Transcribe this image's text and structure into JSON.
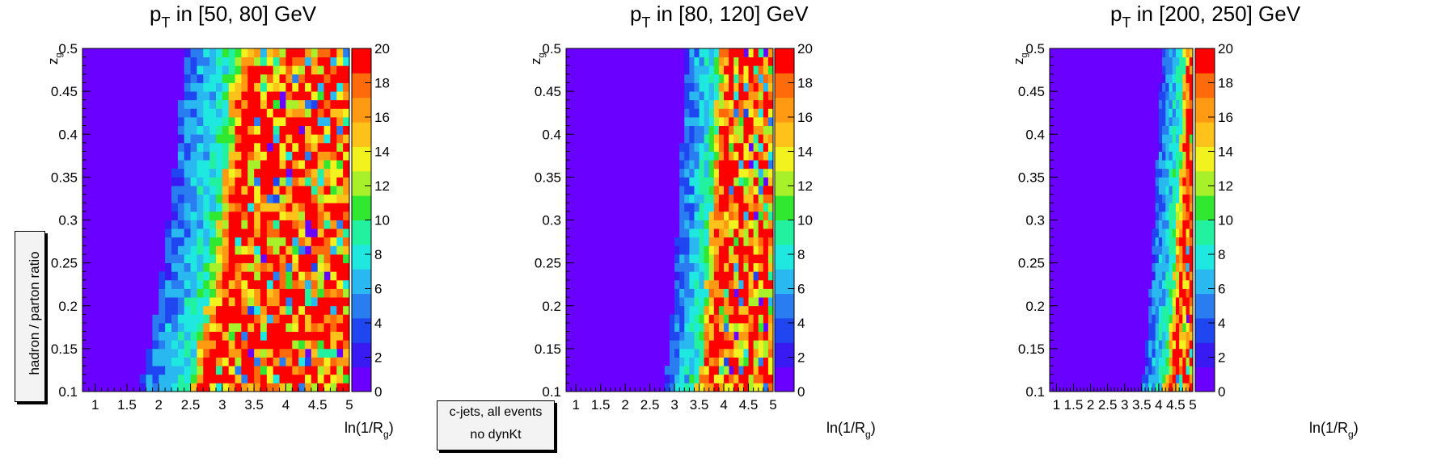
{
  "side_label": "hadron / parton ratio",
  "note": {
    "line1": "c-jets, all events",
    "line2": "no dynKt"
  },
  "colors": {
    "scale": [
      "#6A00FF",
      "#3A1AF2",
      "#1F46F0",
      "#2A7DF0",
      "#29B8F0",
      "#1EE8E0",
      "#22F2A0",
      "#2FE82F",
      "#A8F02A",
      "#F2F21E",
      "#FFC21A",
      "#FF9A12",
      "#FF6A0A",
      "#FF0000"
    ]
  },
  "chart_data": [
    {
      "type": "heatmap",
      "title": {
        "main": "p",
        "sub": "T",
        "rest": " in [50, 80] GeV"
      },
      "xlabel": {
        "main": "ln(1/R",
        "sub": "g",
        "end": ")"
      },
      "ylabel": {
        "main": "z",
        "sub": "g"
      },
      "xlim": [
        0.8,
        5.0
      ],
      "ylim": [
        0.1,
        0.5
      ],
      "x_ticks": [
        "1",
        "1.5",
        "2",
        "2.5",
        "3",
        "3.5",
        "4",
        "4.5",
        "5"
      ],
      "y_ticks": [
        "0.1",
        "0.15",
        "0.2",
        "0.25",
        "0.3",
        "0.35",
        "0.4",
        "0.45",
        "0.5"
      ],
      "zlim": [
        0,
        20
      ],
      "z_ticks": [
        "0",
        "2",
        "4",
        "6",
        "8",
        "10",
        "12",
        "14",
        "16",
        "18",
        "20"
      ],
      "nx": 42,
      "ny": 40,
      "front_x": [
        2.4,
        3.2
      ],
      "front_width": 0.35,
      "noise_seed": 11
    },
    {
      "type": "heatmap",
      "title": {
        "main": "p",
        "sub": "T",
        "rest": " in [80, 120] GeV"
      },
      "xlabel": {
        "main": "ln(1/R",
        "sub": "g",
        "end": ")"
      },
      "ylabel": {
        "main": "z",
        "sub": "g"
      },
      "xlim": [
        0.8,
        5.0
      ],
      "ylim": [
        0.1,
        0.5
      ],
      "x_ticks": [
        "1",
        "1.5",
        "2",
        "2.5",
        "3",
        "3.5",
        "4",
        "4.5",
        "5"
      ],
      "y_ticks": [
        "0.1",
        "0.15",
        "0.2",
        "0.25",
        "0.3",
        "0.35",
        "0.4",
        "0.45",
        "0.5"
      ],
      "zlim": [
        0,
        20
      ],
      "z_ticks": [
        "0",
        "2",
        "4",
        "6",
        "8",
        "10",
        "12",
        "14",
        "16",
        "18",
        "20"
      ],
      "nx": 42,
      "ny": 40,
      "front_x": [
        3.4,
        3.9
      ],
      "front_width": 0.3,
      "noise_seed": 23
    },
    {
      "type": "heatmap",
      "title": {
        "main": "p",
        "sub": "T",
        "rest": " in [200, 250] GeV"
      },
      "xlabel": {
        "main": "ln(1/R",
        "sub": "g",
        "end": ")"
      },
      "ylabel": {
        "main": "z",
        "sub": "g"
      },
      "xlim": [
        0.8,
        5.0
      ],
      "ylim": [
        0.1,
        0.5
      ],
      "x_ticks": [
        "1",
        "1.5",
        "2",
        "2.5",
        "3",
        "3.5",
        "4",
        "4.5",
        "5"
      ],
      "y_ticks": [
        "0.1",
        "0.15",
        "0.2",
        "0.25",
        "0.3",
        "0.35",
        "0.4",
        "0.45",
        "0.5"
      ],
      "zlim": [
        0,
        20
      ],
      "z_ticks": [
        "0",
        "2",
        "4",
        "6",
        "8",
        "10",
        "12",
        "14",
        "16",
        "18",
        "20"
      ],
      "nx": 42,
      "ny": 40,
      "front_x": [
        4.1,
        4.75
      ],
      "front_width": 0.3,
      "noise_seed": 37
    }
  ]
}
